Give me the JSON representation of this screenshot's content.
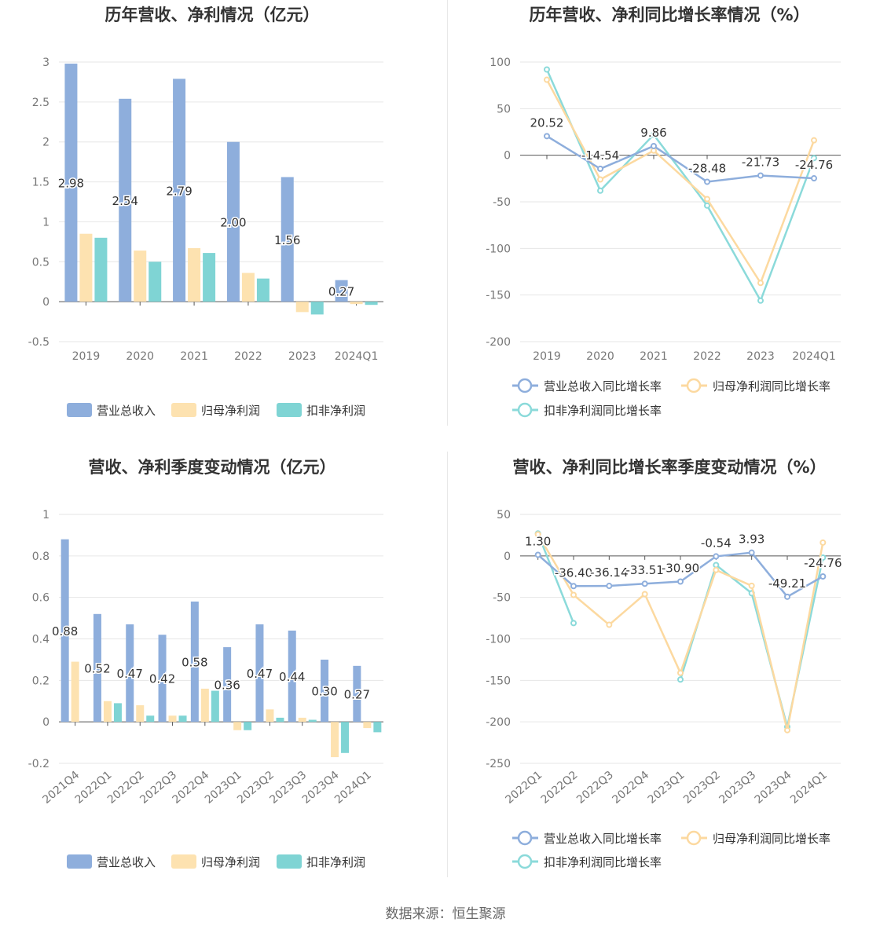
{
  "source": "数据来源：恒生聚源",
  "colors": {
    "revenue": "#8eaedc",
    "net": "#fde2b0",
    "deduct": "#7fd4d4",
    "net_line": "#fcd9a0",
    "deduct_line": "#8bdada",
    "grid": "#e6e6e6",
    "axis": "#555555",
    "text": "#333333",
    "tick": "#777777"
  },
  "chart_data": [
    {
      "type": "bar",
      "title": "历年营收、净利情况（亿元）",
      "categories": [
        "2019",
        "2020",
        "2021",
        "2022",
        "2023",
        "2024Q1"
      ],
      "ylim": [
        -0.5,
        3
      ],
      "yticks": [
        "-0.5",
        "0",
        "0.5",
        "1",
        "1.5",
        "2",
        "2.5",
        "3"
      ],
      "ytick_values": [
        -0.5,
        0,
        0.5,
        1,
        1.5,
        2,
        2.5,
        3
      ],
      "series": [
        {
          "name": "营业总收入",
          "values": [
            2.98,
            2.54,
            2.79,
            2.0,
            1.56,
            0.27
          ]
        },
        {
          "name": "归母净利润",
          "values": [
            0.85,
            0.64,
            0.67,
            0.36,
            -0.13,
            -0.03
          ]
        },
        {
          "name": "扣非净利润",
          "values": [
            0.8,
            0.5,
            0.61,
            0.29,
            -0.16,
            -0.04
          ]
        }
      ],
      "data_labels": [
        "2.98",
        "2.54",
        "2.79",
        "2.00",
        "1.56",
        "0.27"
      ],
      "legend": [
        "营业总收入",
        "归母净利润",
        "扣非净利润"
      ],
      "legend_position": "bottom",
      "grid": true
    },
    {
      "type": "line",
      "title": "历年营收、净利同比增长率情况（%）",
      "categories": [
        "2019",
        "2020",
        "2021",
        "2022",
        "2023",
        "2024Q1"
      ],
      "ylim": [
        -200,
        100
      ],
      "yticks": [
        "-200",
        "-150",
        "-100",
        "-50",
        "0",
        "50",
        "100"
      ],
      "ytick_values": [
        -200,
        -150,
        -100,
        -50,
        0,
        50,
        100
      ],
      "series": [
        {
          "name": "营业总收入同比增长率",
          "values": [
            20.52,
            -14.54,
            9.86,
            -28.48,
            -21.73,
            -24.76
          ]
        },
        {
          "name": "归母净利润同比增长率",
          "values": [
            81,
            -26,
            5,
            -47,
            -137,
            16
          ]
        },
        {
          "name": "扣非净利润同比增长率",
          "values": [
            92,
            -38,
            22,
            -54,
            -156,
            -3
          ]
        }
      ],
      "data_labels": [
        "20.52",
        "-14.54",
        "9.86",
        "-28.48",
        "-21.73",
        "-24.76"
      ],
      "legend": [
        "营业总收入同比增长率",
        "归母净利润同比增长率",
        "扣非净利润同比增长率"
      ],
      "legend_position": "bottom",
      "grid": true
    },
    {
      "type": "bar",
      "title": "营收、净利季度变动情况（亿元）",
      "categories": [
        "2021Q4",
        "2022Q1",
        "2022Q2",
        "2022Q3",
        "2022Q4",
        "2023Q1",
        "2023Q2",
        "2023Q3",
        "2023Q4",
        "2024Q1"
      ],
      "ylim": [
        -0.2,
        1
      ],
      "yticks": [
        "-0.2",
        "0",
        "0.2",
        "0.4",
        "0.6",
        "0.8",
        "1"
      ],
      "ytick_values": [
        -0.2,
        0,
        0.2,
        0.4,
        0.6,
        0.8,
        1
      ],
      "series": [
        {
          "name": "营业总收入",
          "values": [
            0.88,
            0.52,
            0.47,
            0.42,
            0.58,
            0.36,
            0.47,
            0.44,
            0.3,
            0.27
          ]
        },
        {
          "name": "归母净利润",
          "values": [
            0.29,
            0.1,
            0.08,
            0.03,
            0.16,
            -0.04,
            0.06,
            0.02,
            -0.17,
            -0.03
          ]
        },
        {
          "name": "扣非净利润",
          "values": [
            null,
            0.09,
            0.03,
            0.03,
            0.15,
            -0.04,
            0.02,
            0.01,
            -0.15,
            -0.05
          ]
        }
      ],
      "data_labels": [
        "0.88",
        "0.52",
        "0.47",
        "0.42",
        "0.58",
        "0.36",
        "0.47",
        "0.44",
        "0.30",
        "0.27"
      ],
      "legend": [
        "营业总收入",
        "归母净利润",
        "扣非净利润"
      ],
      "legend_position": "bottom",
      "grid": true
    },
    {
      "type": "line",
      "title": "营收、净利同比增长率季度变动情况（%）",
      "categories": [
        "2022Q1",
        "2022Q2",
        "2022Q3",
        "2022Q4",
        "2023Q1",
        "2023Q2",
        "2023Q3",
        "2023Q4",
        "2024Q1"
      ],
      "ylim": [
        -250,
        50
      ],
      "yticks": [
        "-250",
        "-200",
        "-150",
        "-100",
        "-50",
        "0",
        "50"
      ],
      "ytick_values": [
        -250,
        -200,
        -150,
        -100,
        -50,
        0,
        50
      ],
      "series": [
        {
          "name": "营业总收入同比增长率",
          "values": [
            1.3,
            -36.4,
            -36.14,
            -33.51,
            -30.9,
            -0.54,
            3.93,
            -49.21,
            -24.76
          ]
        },
        {
          "name": "归母净利润同比增长率",
          "values": [
            26,
            -47,
            -83,
            -46,
            -141,
            -17,
            -36,
            -210,
            16
          ]
        },
        {
          "name": "扣非净利润同比增长率",
          "values": [
            27,
            -81,
            null,
            null,
            -149,
            -11,
            -45,
            -206,
            -2
          ]
        }
      ],
      "data_labels": [
        "1.30",
        "-36.40",
        "-36.14",
        "-33.51",
        "-30.90",
        "-0.54",
        "3.93",
        "-49.21",
        "-24.76"
      ],
      "legend": [
        "营业总收入同比增长率",
        "归母净利润同比增长率",
        "扣非净利润同比增长率"
      ],
      "legend_position": "bottom",
      "grid": true
    }
  ]
}
